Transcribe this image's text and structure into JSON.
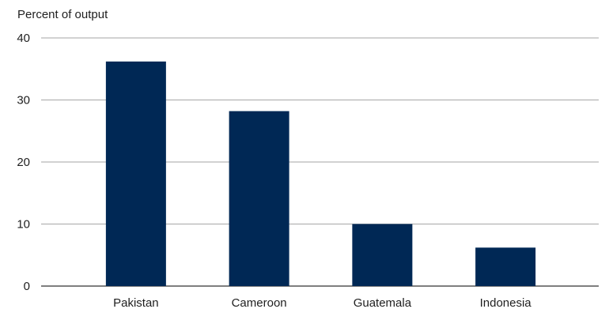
{
  "chart_data": {
    "type": "bar",
    "ylabel": "Percent of output",
    "xlabel": "",
    "categories": [
      "Pakistan",
      "Cameroon",
      "Guatemala",
      "Indonesia"
    ],
    "values": [
      36.2,
      28.2,
      10.0,
      6.2
    ],
    "ylim": [
      0,
      40
    ],
    "yticks": [
      "0",
      "10",
      "20",
      "30",
      "40"
    ],
    "grid": true,
    "bar_color": "#002855",
    "grid_color": "#a6a6a6"
  }
}
